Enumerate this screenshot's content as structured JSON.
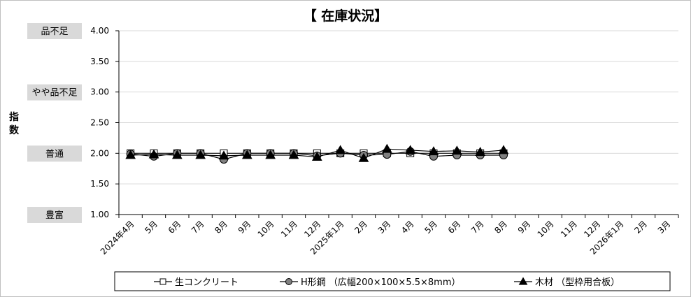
{
  "chart_data": {
    "type": "line",
    "title": "【 在庫状況】",
    "ylabel": "指数",
    "ylim": [
      1.0,
      4.0
    ],
    "yticks": [
      "1.00",
      "1.50",
      "2.00",
      "2.50",
      "3.00",
      "3.50",
      "4.00"
    ],
    "grid": true,
    "legend_position": "bottom",
    "categories": [
      "2024年4月",
      "5月",
      "6月",
      "7月",
      "8月",
      "9月",
      "10月",
      "11月",
      "12月",
      "2025年1月",
      "2月",
      "3月",
      "4月",
      "5月",
      "6月",
      "7月",
      "8月",
      "9月",
      "10月",
      "11月",
      "12月",
      "2026年1月",
      "2月",
      "3月"
    ],
    "level_labels": [
      {
        "text": "品不足",
        "value": 4.0
      },
      {
        "text": "やや品不足",
        "value": 3.0
      },
      {
        "text": "普通",
        "value": 2.0
      },
      {
        "text": "豊富",
        "value": 1.0
      }
    ],
    "series": [
      {
        "name": "生コンクリート",
        "marker": "square",
        "values": [
          2.0,
          2.0,
          2.0,
          2.0,
          2.0,
          2.0,
          2.0,
          2.0,
          2.0,
          2.0,
          2.0,
          2.0,
          2.0,
          2.0,
          2.0,
          2.0,
          2.0,
          null,
          null,
          null,
          null,
          null,
          null,
          null
        ]
      },
      {
        "name": "H形鋼 （広幅200×100×5.5×8mm）",
        "marker": "circle",
        "values": [
          1.99,
          1.95,
          2.0,
          2.0,
          1.9,
          2.0,
          2.0,
          2.0,
          1.96,
          2.0,
          1.97,
          1.98,
          2.03,
          1.95,
          1.97,
          1.97,
          1.97,
          null,
          null,
          null,
          null,
          null,
          null,
          null
        ]
      },
      {
        "name": "木材 （型枠用合板）",
        "marker": "triangle",
        "values": [
          1.97,
          1.98,
          1.97,
          1.97,
          1.96,
          1.97,
          1.97,
          1.97,
          1.94,
          2.05,
          1.92,
          2.07,
          2.05,
          2.03,
          2.04,
          2.02,
          2.05,
          null,
          null,
          null,
          null,
          null,
          null,
          null
        ]
      }
    ],
    "colors": {
      "line": "#000000",
      "circle_fill": "#808080",
      "square_fill": "#ffffff",
      "triangle_fill": "#000000",
      "grid": "#d9d9d9",
      "side_label_bg": "#d9d9d9"
    }
  }
}
